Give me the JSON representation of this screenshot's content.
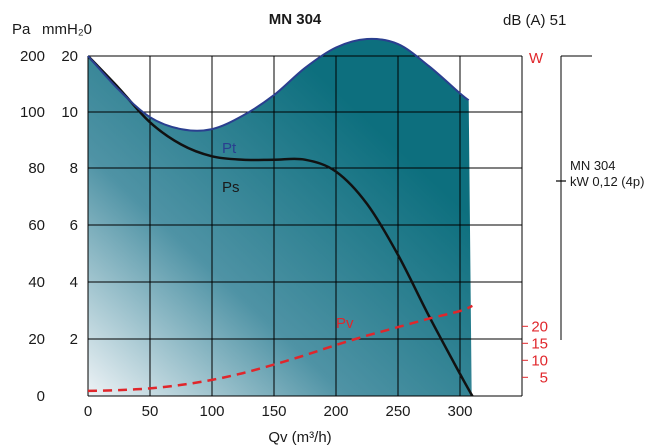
{
  "chart_data": {
    "type": "area",
    "title": "MN 304",
    "noise": "dB (A) 51",
    "xlabel": "Qv (m³/h)",
    "ylabel_pa": "Pa",
    "ylabel_mmh2o": "mmH₂0",
    "power_label": "W",
    "motor_label": "MN 304",
    "motor_spec": "kW 0,12 (4p)",
    "xlim": [
      0,
      350
    ],
    "ylim_pa": [
      0,
      200
    ],
    "x_ticks": [
      0,
      50,
      100,
      150,
      200,
      250,
      300
    ],
    "y_ticks_pa": [
      "0",
      "20",
      "40",
      "60",
      "80",
      "100",
      "200"
    ],
    "y_ticks_mm": [
      "2",
      "4",
      "6",
      "8",
      "10",
      "20"
    ],
    "power_ticks": [
      "5",
      "10",
      "15",
      "20"
    ],
    "power_tick_pa": [
      11,
      21,
      31,
      41
    ],
    "series": [
      {
        "name": "Pt",
        "color": "#2a3f8f",
        "x": [
          0,
          25,
          50,
          75,
          100,
          125,
          150,
          175,
          200,
          225,
          250,
          275,
          300,
          307
        ],
        "y": [
          200,
          180,
          164,
          157,
          157,
          165,
          177,
          193,
          205,
          210,
          207,
          194,
          178,
          174
        ]
      },
      {
        "name": "Ps",
        "color": "#111111",
        "x": [
          0,
          25,
          50,
          75,
          100,
          125,
          150,
          175,
          200,
          225,
          250,
          275,
          300,
          310
        ],
        "y": [
          200,
          181,
          161,
          148,
          141,
          139,
          139,
          139,
          132,
          113,
          83,
          47,
          13,
          0
        ]
      },
      {
        "name": "Pv",
        "color": "#e0262b",
        "x": [
          0,
          25,
          50,
          75,
          100,
          125,
          150,
          175,
          200,
          225,
          250,
          275,
          300,
          310
        ],
        "y": [
          3,
          3.5,
          4.5,
          6.5,
          9.5,
          13.5,
          18.5,
          24,
          30,
          35.5,
          40.5,
          45.5,
          50,
          53
        ]
      }
    ],
    "colors": {
      "fill_dark": "#0d6f7e",
      "fill_light": "#eef3f6",
      "grid": "#000000"
    }
  }
}
